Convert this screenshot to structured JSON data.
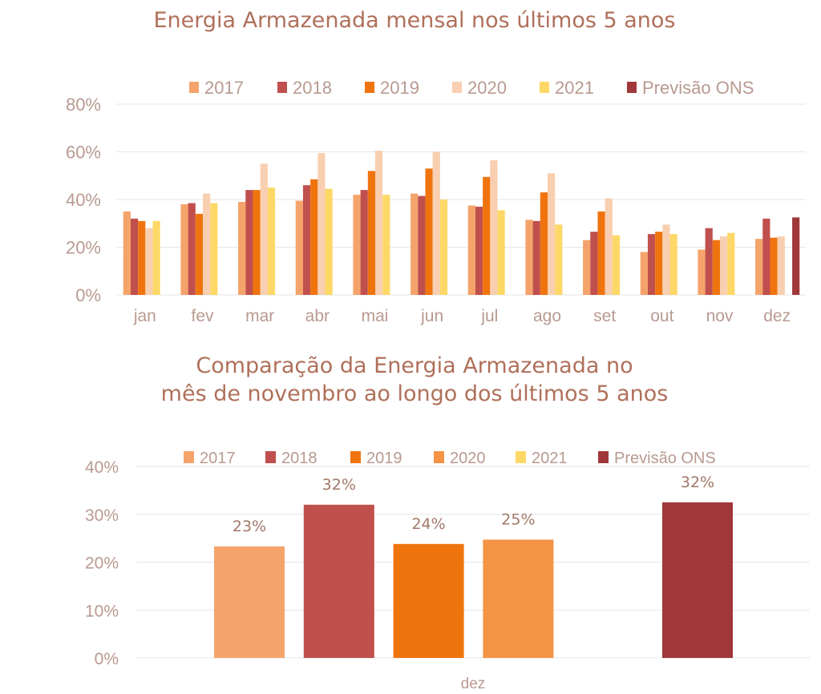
{
  "chart_data": [
    {
      "type": "bar",
      "title": "Energia Armazenada mensal nos últimos 5 anos",
      "categories": [
        "jan",
        "fev",
        "mar",
        "abr",
        "mai",
        "jun",
        "jul",
        "ago",
        "set",
        "out",
        "nov",
        "dez"
      ],
      "ylim": [
        0,
        80
      ],
      "yticks": [
        "0%",
        "20%",
        "40%",
        "60%",
        "80%"
      ],
      "ytick_values": [
        0,
        20,
        40,
        60,
        80
      ],
      "grid": true,
      "legend_position": "top",
      "series": [
        {
          "name": "2017",
          "color": "#f4a46a",
          "values": [
            35,
            38,
            39,
            39.5,
            42,
            42.5,
            37.5,
            31.5,
            23,
            18,
            19,
            23.5
          ]
        },
        {
          "name": "2018",
          "color": "#c0504d",
          "values": [
            32,
            38.5,
            44,
            46,
            44,
            41.5,
            37,
            31,
            26.5,
            25.5,
            28,
            32
          ]
        },
        {
          "name": "2019",
          "color": "#f0740e",
          "values": [
            31,
            34,
            44,
            48.5,
            52,
            53,
            49.5,
            43,
            35,
            26.5,
            23,
            24
          ]
        },
        {
          "name": "2020",
          "color": "#f8cfb0",
          "values": [
            28,
            42.5,
            55,
            59.5,
            60.5,
            60,
            56.5,
            51,
            40.5,
            29.5,
            24.5,
            24.5
          ]
        },
        {
          "name": "2021",
          "color": "#fdd866",
          "values": [
            31,
            38.5,
            45,
            44.5,
            42,
            40,
            35.5,
            29.5,
            25,
            25.5,
            26,
            null
          ]
        },
        {
          "name": "Previsão ONS",
          "color": "#a0383a",
          "values": [
            null,
            null,
            null,
            null,
            null,
            null,
            null,
            null,
            null,
            null,
            null,
            32.5
          ]
        }
      ]
    },
    {
      "type": "bar",
      "title_lines": [
        "Comparação da Energia Armazenada no",
        "mês de novembro ao longo dos últimos 5 anos"
      ],
      "categories": [
        "dez"
      ],
      "ylim": [
        0,
        40
      ],
      "yticks": [
        "0%",
        "10%",
        "20%",
        "30%",
        "40%"
      ],
      "ytick_values": [
        0,
        10,
        20,
        30,
        40
      ],
      "grid": true,
      "legend_position": "top",
      "series": [
        {
          "name": "2017",
          "color": "#f4a46a",
          "values": [
            23.3
          ],
          "label": "23%"
        },
        {
          "name": "2018",
          "color": "#c0504d",
          "values": [
            32
          ],
          "label": "32%"
        },
        {
          "name": "2019",
          "color": "#f0740e",
          "values": [
            23.8
          ],
          "label": "24%"
        },
        {
          "name": "2020",
          "color": "#f49444",
          "values": [
            24.7
          ],
          "label": "25%"
        },
        {
          "name": "2021",
          "color": "#fdd866",
          "values": [
            null
          ],
          "label": ""
        },
        {
          "name": "Previsão ONS",
          "color": "#a0383a",
          "values": [
            32.5
          ],
          "label": "32%"
        }
      ]
    }
  ]
}
